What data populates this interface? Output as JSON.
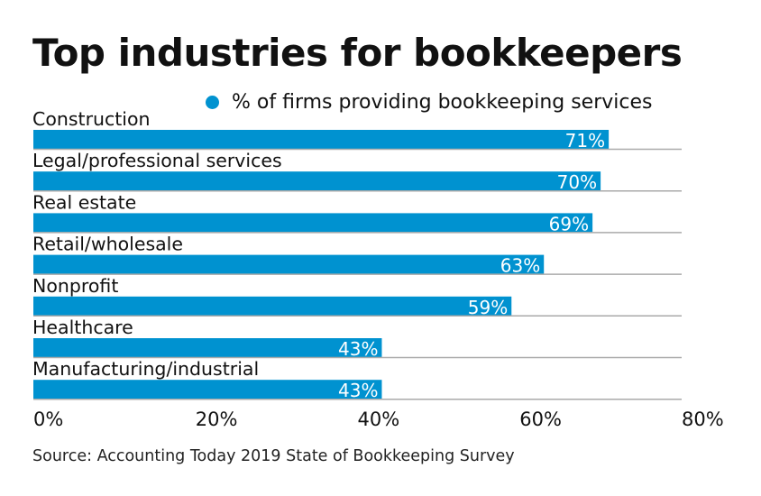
{
  "chart_data": {
    "type": "bar",
    "orientation": "horizontal",
    "title": "Top industries for bookkeepers",
    "legend": [
      {
        "name": "% of firms providing bookkeeping services",
        "color": "#0092D0"
      }
    ],
    "legend_placement": "top",
    "categories": [
      "Construction",
      "Legal/professional services",
      "Real estate",
      "Retail/wholesale",
      "Nonprofit",
      "Healthcare",
      "Manufacturing/industrial"
    ],
    "series": [
      {
        "name": "% of firms providing bookkeeping services",
        "values": [
          71,
          70,
          69,
          63,
          59,
          43,
          43
        ]
      }
    ],
    "data_labels": [
      "71%",
      "70%",
      "69%",
      "63%",
      "59%",
      "43%",
      "43%"
    ],
    "xlim": [
      0,
      80
    ],
    "xticks": [
      0,
      20,
      40,
      60,
      80
    ],
    "xtick_labels": [
      "0%",
      "20%",
      "40%",
      "60%",
      "80%"
    ],
    "grid": "horizontal row separators",
    "source": "Source: Accounting Today 2019 State of Bookkeeping Survey"
  },
  "colors": {
    "bar": "#0092D0",
    "separator": "#aaaaaa"
  }
}
